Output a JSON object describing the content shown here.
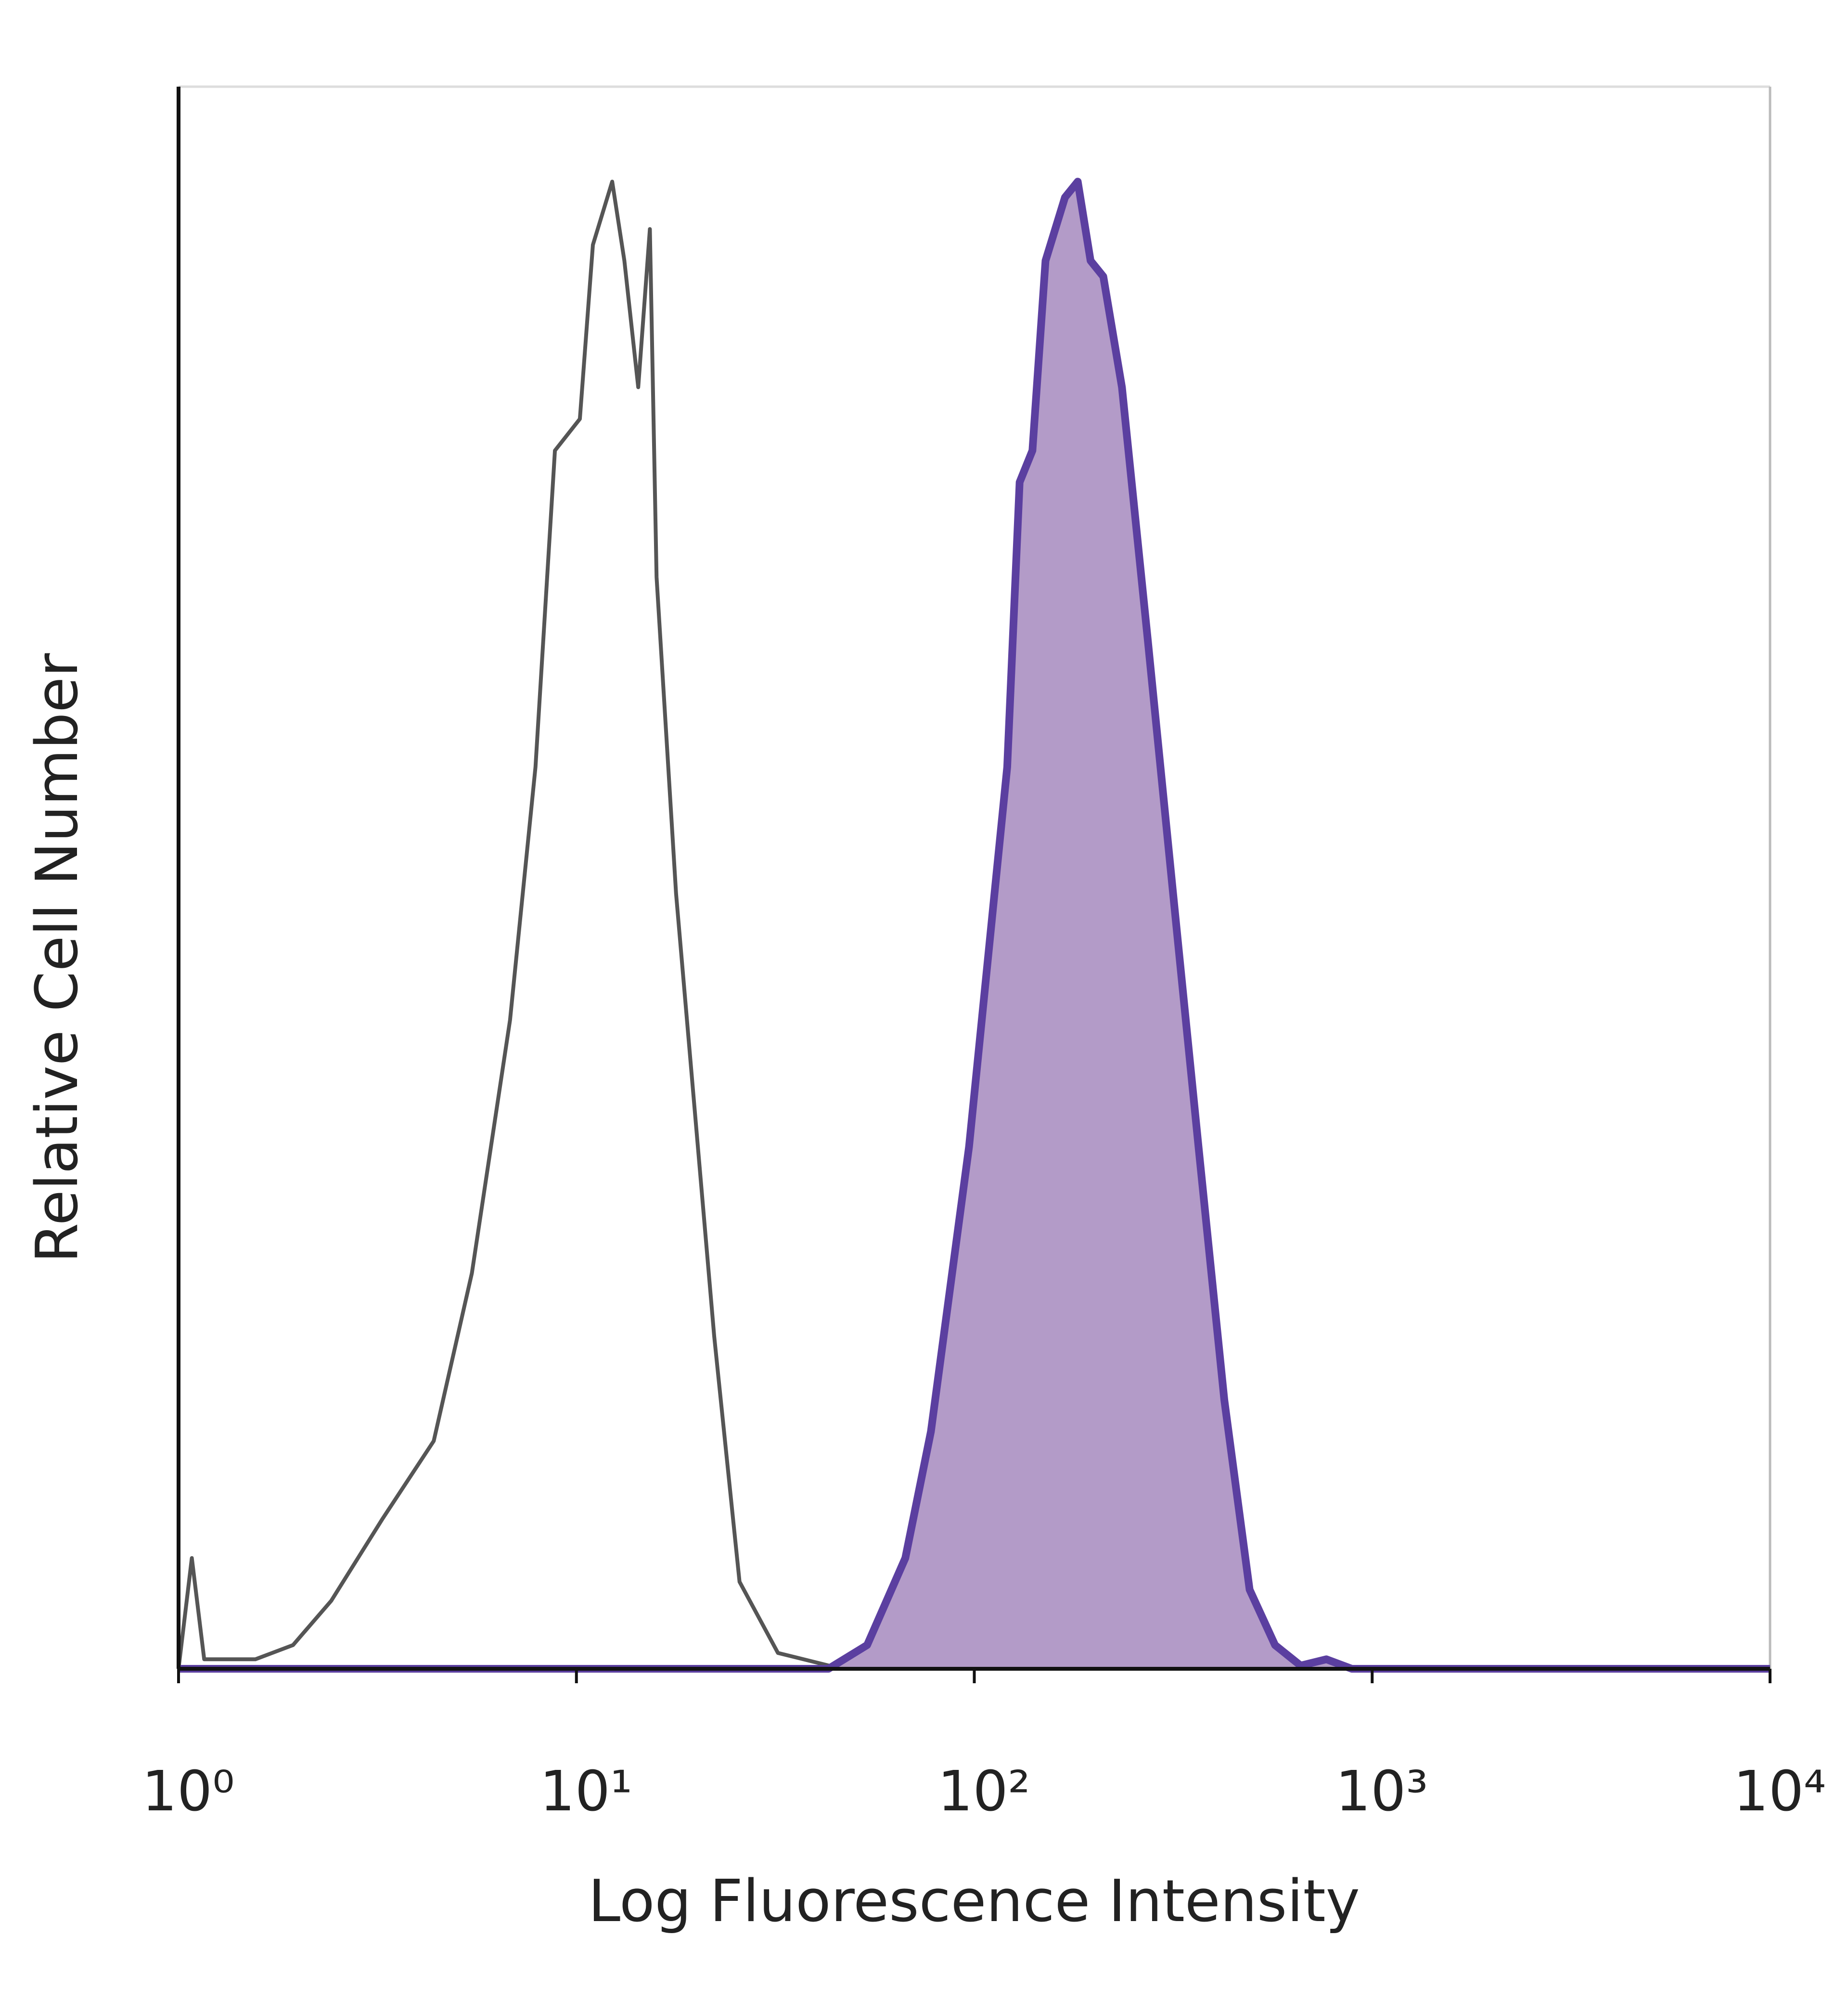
{
  "chart_data": {
    "type": "line",
    "xlabel": "Log Fluorescence Intensity",
    "ylabel": "Relative Cell Number",
    "xscale": "log",
    "xlim": [
      1,
      10000
    ],
    "xticks": [
      {
        "value": 1,
        "label": "10⁰"
      },
      {
        "value": 10,
        "label": "10¹"
      },
      {
        "value": 100,
        "label": "10²"
      },
      {
        "value": 1000,
        "label": "10³"
      },
      {
        "value": 10000,
        "label": "10⁴"
      }
    ],
    "ylim": [
      0,
      100
    ],
    "series": [
      {
        "color": "#555555",
        "x": [
          1,
          1.08,
          1.16,
          1.56,
          1.94,
          2.42,
          3.26,
          4.38,
          5.46,
          6.81,
          7.89,
          8.83,
          10.2,
          11.0,
          12.3,
          13.2,
          14.3,
          15.3,
          15.9,
          17.8,
          22.2,
          25.7,
          32.1,
          43.1,
          62,
          10000
        ],
        "values": [
          0,
          7,
          0.6,
          0.6,
          1.5,
          4.3,
          9.5,
          14.4,
          25,
          41,
          57,
          77,
          79,
          90,
          94,
          89,
          81,
          91,
          69,
          49,
          21,
          5.5,
          1,
          0.2,
          0,
          0
        ]
      },
      {
        "color": "#5b3fa0",
        "fill_color": "#b39bc8",
        "x": [
          1,
          43,
          53.8,
          67.1,
          77.8,
          97,
          121,
          130,
          140,
          151,
          169,
          182,
          196,
          211,
          235,
          273,
          316,
          366,
          425,
          492,
          570,
          661,
          767,
          889,
          10000
        ],
        "values": [
          0,
          0,
          1.5,
          7,
          15,
          33,
          57,
          75,
          77,
          89,
          93,
          94,
          89,
          88,
          81,
          65,
          49,
          33,
          17,
          5,
          1.5,
          0.2,
          0.6,
          0,
          0
        ]
      }
    ]
  }
}
